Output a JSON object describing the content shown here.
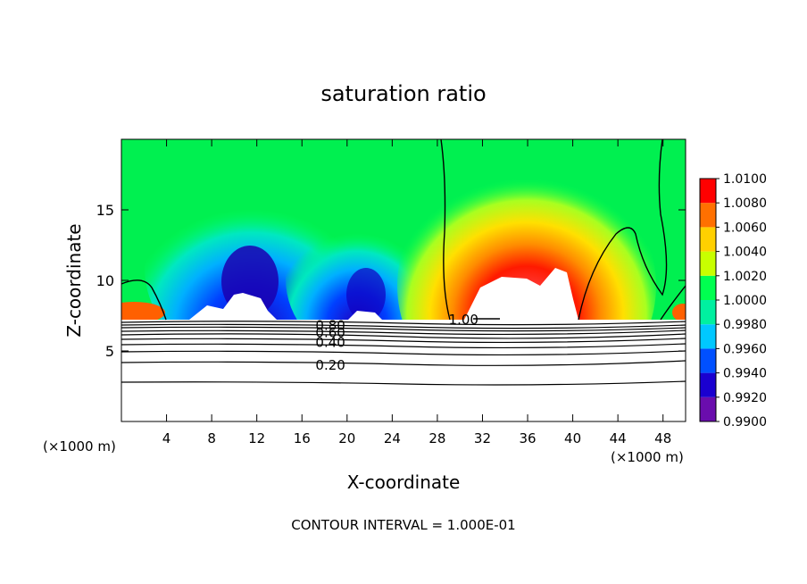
{
  "chart_data": {
    "type": "heatmap",
    "title": "saturation ratio",
    "xlabel": "X-coordinate",
    "ylabel": "Z-coordinate",
    "x_unit_label": "(×1000 m)",
    "xlim": [
      0,
      50
    ],
    "ylim": [
      0,
      20
    ],
    "x_ticks": [
      4,
      8,
      12,
      16,
      20,
      24,
      28,
      32,
      36,
      40,
      44,
      48
    ],
    "y_ticks": [
      5,
      10,
      15
    ],
    "footer": "CONTOUR INTERVAL = 1.000E-01",
    "colorbar": {
      "levels": [
        "0.9900",
        "0.9920",
        "0.9940",
        "0.9960",
        "0.9980",
        "1.0000",
        "1.0020",
        "1.0040",
        "1.0060",
        "1.0080",
        "1.0100"
      ],
      "colors": [
        "#6a0dad",
        "#1a00d0",
        "#0050ff",
        "#00c8ff",
        "#00f0a0",
        "#00ff50",
        "#c8ff00",
        "#ffd000",
        "#ff7000",
        "#ff0000",
        "#ff8080"
      ]
    },
    "contour_labels": [
      {
        "text": "0.20",
        "x": 17.2,
        "y": 4.0
      },
      {
        "text": "0.40",
        "x": 17.2,
        "y": 5.6
      },
      {
        "text": "0.60",
        "x": 17.2,
        "y": 6.3
      },
      {
        "text": "0.80",
        "x": 17.2,
        "y": 6.8
      },
      {
        "text": "1.00",
        "x": 29.0,
        "y": 7.2
      }
    ]
  }
}
